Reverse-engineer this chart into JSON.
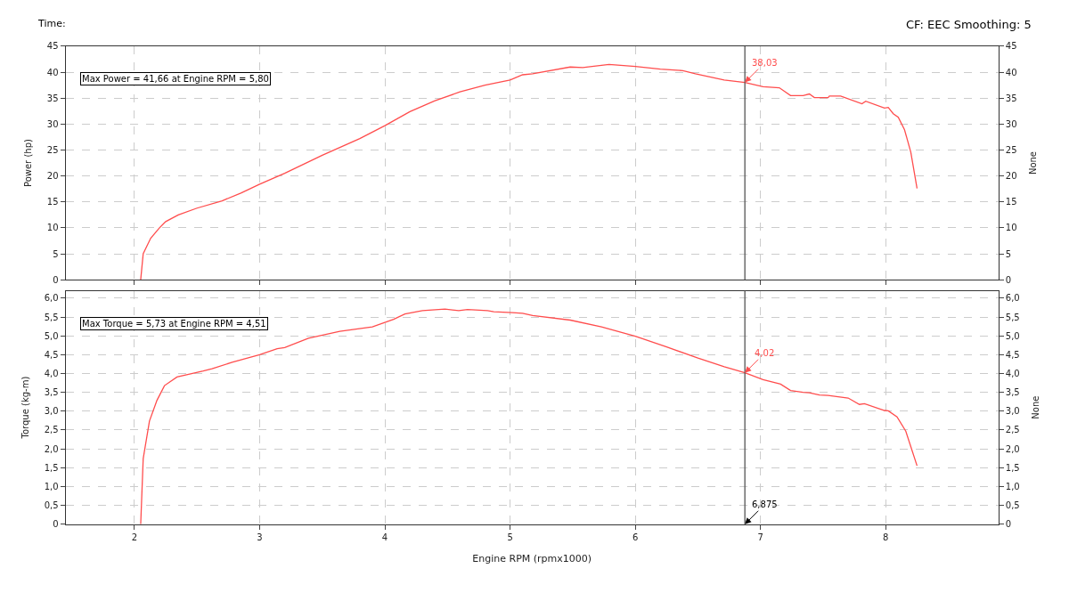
{
  "chart_data": [
    {
      "type": "line",
      "ylabel": "Power (hp)",
      "y2label": "None",
      "annotations": [
        "Max Power = 41,66 at Engine RPM = 5,80",
        "Time:",
        "CF: EEC Smoothing: 5",
        {
          "text": "38,03",
          "x": 6.875,
          "y": 38.03
        }
      ],
      "xlim": [
        1.45,
        8.9
      ],
      "xticks": [
        2,
        3,
        4,
        5,
        6,
        7,
        8
      ],
      "tick_labels": "y",
      "ylim": [
        0,
        45
      ],
      "yticks": [
        0,
        5,
        10,
        15,
        20,
        25,
        30,
        35,
        40,
        45
      ],
      "y2lim": [
        0,
        45
      ],
      "y2ticks": [
        0,
        5,
        10,
        15,
        20,
        25,
        30,
        35,
        40,
        45
      ],
      "grid": true,
      "line_style": "solid",
      "ref_lines": [
        {
          "axis": "x",
          "value": 6.875,
          "color": "#555555"
        }
      ],
      "series": [
        {
          "color": "#ff4d4d",
          "x": [
            2.05,
            2.07,
            2.13,
            2.2,
            2.25,
            2.35,
            2.5,
            2.7,
            2.85,
            3.0,
            3.2,
            3.5,
            3.8,
            4.0,
            4.2,
            4.4,
            4.6,
            4.8,
            5.0,
            5.1,
            5.18,
            5.48,
            5.58,
            5.79,
            6.0,
            6.2,
            6.38,
            6.48,
            6.71,
            6.875,
            7.02,
            7.15,
            7.24,
            7.34,
            7.39,
            7.43,
            7.54,
            7.55,
            7.64,
            7.81,
            7.84,
            7.99,
            8.02,
            8.06,
            8.1,
            8.15,
            8.2,
            8.25
          ],
          "values": [
            0,
            5,
            8,
            10,
            11.2,
            12.5,
            13.8,
            15.2,
            16.7,
            18.4,
            20.5,
            24,
            27.2,
            29.7,
            32.4,
            34.5,
            36.2,
            37.5,
            38.5,
            39.5,
            39.7,
            41.0,
            40.9,
            41.5,
            41.1,
            40.6,
            40.3,
            39.7,
            38.5,
            38.03,
            37.2,
            37.0,
            35.5,
            35.5,
            35.8,
            35.1,
            35.1,
            35.4,
            35.4,
            33.9,
            34.4,
            33.1,
            33.2,
            32.0,
            31.3,
            28.9,
            24.6,
            17.6
          ]
        }
      ]
    },
    {
      "type": "line",
      "xlabel": "Engine RPM (rpmx1000)",
      "ylabel": "Torque (kg-m)",
      "y2label": "None",
      "annotations": [
        "Max Torque = 5,73 at Engine RPM = 4,51",
        {
          "text": "4,02",
          "x": 6.875,
          "y": 4.02
        }
      ],
      "xlim": [
        1.45,
        8.9
      ],
      "xticks": [
        2,
        3,
        4,
        5,
        6,
        7,
        8
      ],
      "ylim": [
        0,
        6.2
      ],
      "yticks": [
        0,
        {
          "value": 0.5,
          "label": "0,5"
        },
        {
          "value": 1,
          "label": "1,0"
        },
        {
          "value": 1.5,
          "label": "1,5"
        },
        {
          "value": 2,
          "label": "2,0"
        },
        {
          "value": 2.5,
          "label": "2,5"
        },
        {
          "value": 3,
          "label": "3,0"
        },
        {
          "value": 3.5,
          "label": "3,5"
        },
        {
          "value": 4,
          "label": "4,0"
        },
        {
          "value": 4.5,
          "label": "4,5"
        },
        {
          "value": 5,
          "label": "5,0"
        },
        {
          "value": 5.5,
          "label": "5,5"
        },
        {
          "value": 6,
          "label": "6,0"
        }
      ],
      "y2lim": [
        0,
        6.2
      ],
      "y2ticks": [
        0,
        {
          "value": 0.5,
          "label": "0,5"
        },
        {
          "value": 1,
          "label": "1,0"
        },
        {
          "value": 1.5,
          "label": "1,5"
        },
        {
          "value": 2,
          "label": "2,0"
        },
        {
          "value": 2.5,
          "label": "2,5"
        },
        {
          "value": 3,
          "label": "3,0"
        },
        {
          "value": 3.5,
          "label": "3,5"
        },
        {
          "value": 4,
          "label": "4,0"
        },
        {
          "value": 4.5,
          "label": "4,5"
        },
        {
          "value": 5,
          "label": "5,0"
        },
        {
          "value": 5.5,
          "label": "5,5"
        },
        {
          "value": 6,
          "label": "6,0"
        }
      ],
      "grid": true,
      "line_style": "solid",
      "ref_lines": [
        {
          "axis": "x",
          "value": 6.875,
          "label": "6,875",
          "color": "#555555"
        }
      ],
      "series": [
        {
          "color": "#ff4d4d",
          "x": [
            2.05,
            2.07,
            2.12,
            2.18,
            2.24,
            2.34,
            2.55,
            2.62,
            2.78,
            3.0,
            3.14,
            3.2,
            3.39,
            3.64,
            3.9,
            4.07,
            4.16,
            4.3,
            4.48,
            4.59,
            4.66,
            4.82,
            4.87,
            5.02,
            5.1,
            5.18,
            5.48,
            5.73,
            6.0,
            6.25,
            6.5,
            6.71,
            6.875,
            7.02,
            7.16,
            7.24,
            7.34,
            7.39,
            7.47,
            7.54,
            7.7,
            7.79,
            7.83,
            7.99,
            8.02,
            8.09,
            8.16,
            8.25
          ],
          "values": [
            0,
            1.74,
            2.74,
            3.29,
            3.68,
            3.91,
            4.07,
            4.13,
            4.3,
            4.5,
            4.66,
            4.69,
            4.94,
            5.12,
            5.24,
            5.44,
            5.58,
            5.67,
            5.71,
            5.67,
            5.7,
            5.67,
            5.64,
            5.62,
            5.6,
            5.54,
            5.42,
            5.24,
            4.99,
            4.71,
            4.41,
            4.18,
            4.02,
            3.84,
            3.72,
            3.55,
            3.5,
            3.49,
            3.43,
            3.42,
            3.35,
            3.18,
            3.2,
            3.02,
            3.01,
            2.85,
            2.47,
            1.55
          ]
        }
      ]
    }
  ]
}
